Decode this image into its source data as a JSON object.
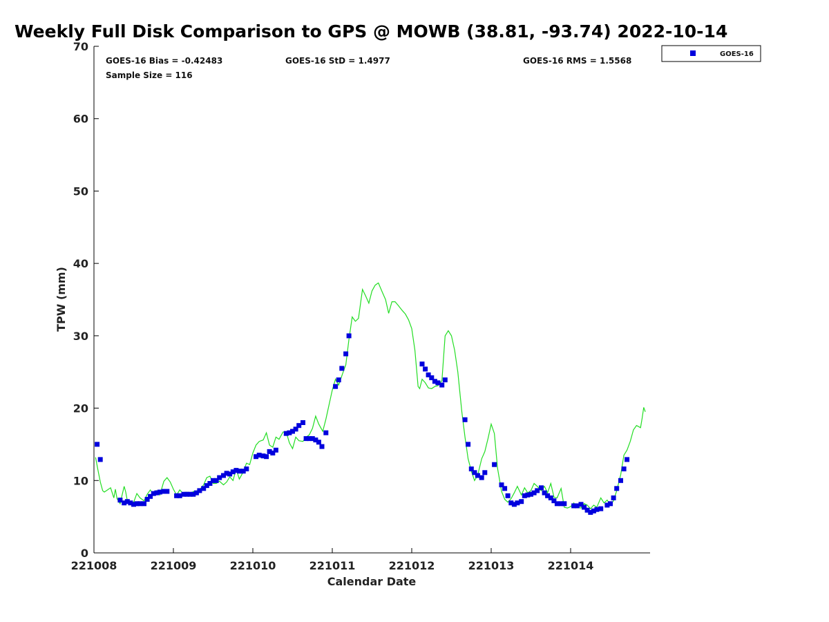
{
  "chart_data": {
    "type": "scatter",
    "title": "Weekly Full Disk Comparison to GPS @ MOWB (38.81, -93.74) 2022-10-14",
    "xlabel": "Calendar Date",
    "ylabel": "TPW (mm)",
    "xlim": [
      221008,
      221015
    ],
    "ylim": [
      0,
      70
    ],
    "x_ticks": [
      "221008",
      "221009",
      "221010",
      "221011",
      "221012",
      "221013",
      "221014"
    ],
    "y_ticks": [
      "0",
      "10",
      "20",
      "30",
      "40",
      "50",
      "60",
      "70"
    ],
    "grid": false,
    "legend_position": "top-right, outside plot",
    "stats": {
      "bias": "GOES-16 Bias = -0.42483",
      "std": "GOES-16 StD = 1.4977",
      "rms": "GOES-16 RMS = 1.5568",
      "sample": "Sample Size = 116"
    },
    "colors": {
      "goes16": "#0000dd",
      "gps_line": "#22dd22"
    },
    "series": [
      {
        "name": "GOES-16",
        "marker": "square",
        "color": "#0000dd",
        "points": [
          [
            221008.04,
            15.0
          ],
          [
            221008.08,
            12.9
          ],
          [
            221008.33,
            7.3
          ],
          [
            221008.38,
            6.9
          ],
          [
            221008.42,
            7.1
          ],
          [
            221008.46,
            6.9
          ],
          [
            221008.5,
            6.7
          ],
          [
            221008.54,
            6.8
          ],
          [
            221008.58,
            6.8
          ],
          [
            221008.63,
            6.8
          ],
          [
            221008.67,
            7.4
          ],
          [
            221008.71,
            7.8
          ],
          [
            221008.75,
            8.2
          ],
          [
            221008.79,
            8.3
          ],
          [
            221008.83,
            8.4
          ],
          [
            221008.88,
            8.5
          ],
          [
            221008.92,
            8.5
          ],
          [
            221009.04,
            7.9
          ],
          [
            221009.08,
            7.9
          ],
          [
            221009.13,
            8.1
          ],
          [
            221009.17,
            8.1
          ],
          [
            221009.21,
            8.1
          ],
          [
            221009.25,
            8.1
          ],
          [
            221009.29,
            8.3
          ],
          [
            221009.33,
            8.6
          ],
          [
            221009.38,
            8.9
          ],
          [
            221009.42,
            9.3
          ],
          [
            221009.46,
            9.6
          ],
          [
            221009.5,
            10.0
          ],
          [
            221009.54,
            10.0
          ],
          [
            221009.58,
            10.4
          ],
          [
            221009.63,
            10.7
          ],
          [
            221009.67,
            11.0
          ],
          [
            221009.71,
            10.9
          ],
          [
            221009.75,
            11.2
          ],
          [
            221009.79,
            11.4
          ],
          [
            221009.83,
            11.3
          ],
          [
            221009.88,
            11.3
          ],
          [
            221009.92,
            11.6
          ],
          [
            221010.04,
            13.3
          ],
          [
            221010.08,
            13.5
          ],
          [
            221010.13,
            13.4
          ],
          [
            221010.17,
            13.3
          ],
          [
            221010.21,
            14.0
          ],
          [
            221010.25,
            13.8
          ],
          [
            221010.29,
            14.2
          ],
          [
            221010.42,
            16.5
          ],
          [
            221010.46,
            16.6
          ],
          [
            221010.5,
            16.8
          ],
          [
            221010.54,
            17.1
          ],
          [
            221010.58,
            17.6
          ],
          [
            221010.63,
            18.0
          ],
          [
            221010.67,
            15.8
          ],
          [
            221010.71,
            15.8
          ],
          [
            221010.75,
            15.8
          ],
          [
            221010.79,
            15.6
          ],
          [
            221010.83,
            15.3
          ],
          [
            221010.87,
            14.7
          ],
          [
            221010.92,
            16.6
          ],
          [
            221011.04,
            23.0
          ],
          [
            221011.08,
            23.9
          ],
          [
            221011.12,
            25.5
          ],
          [
            221011.17,
            27.5
          ],
          [
            221011.21,
            30.0
          ],
          [
            221012.13,
            26.1
          ],
          [
            221012.17,
            25.4
          ],
          [
            221012.21,
            24.6
          ],
          [
            221012.25,
            24.2
          ],
          [
            221012.29,
            23.7
          ],
          [
            221012.33,
            23.5
          ],
          [
            221012.38,
            23.2
          ],
          [
            221012.42,
            23.9
          ],
          [
            221012.67,
            18.4
          ],
          [
            221012.71,
            15.0
          ],
          [
            221012.75,
            11.6
          ],
          [
            221012.79,
            11.1
          ],
          [
            221012.83,
            10.7
          ],
          [
            221012.88,
            10.4
          ],
          [
            221012.92,
            11.1
          ],
          [
            221013.04,
            12.2
          ],
          [
            221013.13,
            9.4
          ],
          [
            221013.17,
            8.9
          ],
          [
            221013.21,
            7.9
          ],
          [
            221013.25,
            6.9
          ],
          [
            221013.29,
            6.7
          ],
          [
            221013.33,
            6.9
          ],
          [
            221013.38,
            7.1
          ],
          [
            221013.42,
            7.9
          ],
          [
            221013.46,
            8.0
          ],
          [
            221013.5,
            8.1
          ],
          [
            221013.54,
            8.3
          ],
          [
            221013.58,
            8.6
          ],
          [
            221013.63,
            9.0
          ],
          [
            221013.67,
            8.3
          ],
          [
            221013.71,
            7.9
          ],
          [
            221013.75,
            7.6
          ],
          [
            221013.79,
            7.2
          ],
          [
            221013.83,
            6.8
          ],
          [
            221013.88,
            6.8
          ],
          [
            221013.92,
            6.8
          ],
          [
            221014.04,
            6.5
          ],
          [
            221014.08,
            6.5
          ],
          [
            221014.13,
            6.7
          ],
          [
            221014.17,
            6.3
          ],
          [
            221014.21,
            5.9
          ],
          [
            221014.25,
            5.6
          ],
          [
            221014.29,
            5.8
          ],
          [
            221014.33,
            6.0
          ],
          [
            221014.38,
            6.1
          ],
          [
            221014.46,
            6.6
          ],
          [
            221014.5,
            6.8
          ],
          [
            221014.54,
            7.6
          ],
          [
            221014.58,
            8.9
          ],
          [
            221014.63,
            10.0
          ],
          [
            221014.67,
            11.6
          ],
          [
            221014.71,
            12.9
          ]
        ]
      },
      {
        "name": "GPS",
        "type": "line",
        "color": "#22dd22",
        "points": [
          [
            221008.02,
            13.2
          ],
          [
            221008.05,
            11.5
          ],
          [
            221008.08,
            9.8
          ],
          [
            221008.11,
            8.6
          ],
          [
            221008.13,
            8.4
          ],
          [
            221008.17,
            8.7
          ],
          [
            221008.21,
            9.0
          ],
          [
            221008.25,
            7.6
          ],
          [
            221008.27,
            8.8
          ],
          [
            221008.29,
            7.5
          ],
          [
            221008.33,
            6.8
          ],
          [
            221008.35,
            7.8
          ],
          [
            221008.38,
            9.2
          ],
          [
            221008.4,
            8.4
          ],
          [
            221008.42,
            7.2
          ],
          [
            221008.46,
            6.8
          ],
          [
            221008.5,
            7.0
          ],
          [
            221008.54,
            8.2
          ],
          [
            221008.58,
            7.6
          ],
          [
            221008.63,
            7.2
          ],
          [
            221008.67,
            8.1
          ],
          [
            221008.71,
            8.7
          ],
          [
            221008.75,
            8.0
          ],
          [
            221008.79,
            8.6
          ],
          [
            221008.83,
            8.0
          ],
          [
            221008.88,
            9.9
          ],
          [
            221008.92,
            10.4
          ],
          [
            221008.96,
            9.8
          ],
          [
            221009.0,
            8.8
          ],
          [
            221009.04,
            8.0
          ],
          [
            221009.08,
            8.7
          ],
          [
            221009.13,
            8.1
          ],
          [
            221009.17,
            8.4
          ],
          [
            221009.21,
            7.9
          ],
          [
            221009.25,
            8.5
          ],
          [
            221009.29,
            8.3
          ],
          [
            221009.33,
            8.7
          ],
          [
            221009.38,
            9.4
          ],
          [
            221009.42,
            10.4
          ],
          [
            221009.46,
            10.6
          ],
          [
            221009.5,
            9.6
          ],
          [
            221009.54,
            9.6
          ],
          [
            221009.58,
            9.9
          ],
          [
            221009.63,
            9.4
          ],
          [
            221009.67,
            9.8
          ],
          [
            221009.71,
            10.5
          ],
          [
            221009.75,
            10.0
          ],
          [
            221009.79,
            11.6
          ],
          [
            221009.83,
            10.2
          ],
          [
            221009.88,
            11.2
          ],
          [
            221009.92,
            12.4
          ],
          [
            221009.96,
            12.2
          ],
          [
            221010.0,
            13.8
          ],
          [
            221010.04,
            14.9
          ],
          [
            221010.08,
            15.4
          ],
          [
            221010.13,
            15.6
          ],
          [
            221010.17,
            16.6
          ],
          [
            221010.21,
            14.9
          ],
          [
            221010.25,
            14.6
          ],
          [
            221010.29,
            16.0
          ],
          [
            221010.33,
            15.7
          ],
          [
            221010.38,
            16.7
          ],
          [
            221010.42,
            16.7
          ],
          [
            221010.46,
            15.2
          ],
          [
            221010.5,
            14.4
          ],
          [
            221010.54,
            16.0
          ],
          [
            221010.58,
            15.5
          ],
          [
            221010.63,
            15.4
          ],
          [
            221010.67,
            16.0
          ],
          [
            221010.71,
            16.3
          ],
          [
            221010.75,
            17.2
          ],
          [
            221010.79,
            18.9
          ],
          [
            221010.83,
            17.8
          ],
          [
            221010.88,
            16.8
          ],
          [
            221010.92,
            18.5
          ],
          [
            221010.96,
            20.5
          ],
          [
            221011.0,
            22.5
          ],
          [
            221011.04,
            24.0
          ],
          [
            221011.08,
            23.2
          ],
          [
            221011.13,
            24.8
          ],
          [
            221011.17,
            26.0
          ],
          [
            221011.21,
            29.5
          ],
          [
            221011.25,
            32.6
          ],
          [
            221011.29,
            32.0
          ],
          [
            221011.33,
            32.4
          ],
          [
            221011.38,
            36.4
          ],
          [
            221011.42,
            35.5
          ],
          [
            221011.46,
            34.5
          ],
          [
            221011.5,
            36.2
          ],
          [
            221011.54,
            37.0
          ],
          [
            221011.58,
            37.3
          ],
          [
            221011.63,
            36.0
          ],
          [
            221011.67,
            35.0
          ],
          [
            221011.71,
            33.1
          ],
          [
            221011.75,
            34.7
          ],
          [
            221011.79,
            34.7
          ],
          [
            221011.83,
            34.2
          ],
          [
            221011.88,
            33.5
          ],
          [
            221011.92,
            33.0
          ],
          [
            221011.96,
            32.2
          ],
          [
            221012.0,
            31.0
          ],
          [
            221012.04,
            28.0
          ],
          [
            221012.08,
            23.0
          ],
          [
            221012.1,
            22.7
          ],
          [
            221012.13,
            24.0
          ],
          [
            221012.17,
            23.5
          ],
          [
            221012.21,
            22.8
          ],
          [
            221012.25,
            22.7
          ],
          [
            221012.29,
            23.0
          ],
          [
            221012.33,
            23.1
          ],
          [
            221012.38,
            23.8
          ],
          [
            221012.42,
            30.0
          ],
          [
            221012.46,
            30.7
          ],
          [
            221012.5,
            30.0
          ],
          [
            221012.54,
            28.0
          ],
          [
            221012.58,
            25.0
          ],
          [
            221012.63,
            19.5
          ],
          [
            221012.67,
            16.0
          ],
          [
            221012.71,
            13.0
          ],
          [
            221012.75,
            11.3
          ],
          [
            221012.79,
            10.0
          ],
          [
            221012.83,
            10.7
          ],
          [
            221012.88,
            13.0
          ],
          [
            221012.92,
            14.0
          ],
          [
            221012.96,
            15.8
          ],
          [
            221013.0,
            17.8
          ],
          [
            221013.04,
            16.5
          ],
          [
            221013.08,
            11.7
          ],
          [
            221013.13,
            8.5
          ],
          [
            221013.17,
            7.4
          ],
          [
            221013.21,
            7.0
          ],
          [
            221013.25,
            7.5
          ],
          [
            221013.29,
            8.3
          ],
          [
            221013.33,
            9.2
          ],
          [
            221013.38,
            8.0
          ],
          [
            221013.42,
            9.0
          ],
          [
            221013.46,
            8.3
          ],
          [
            221013.5,
            8.6
          ],
          [
            221013.54,
            9.6
          ],
          [
            221013.58,
            9.2
          ],
          [
            221013.63,
            8.6
          ],
          [
            221013.67,
            9.2
          ],
          [
            221013.71,
            8.3
          ],
          [
            221013.75,
            9.6
          ],
          [
            221013.79,
            7.7
          ],
          [
            221013.83,
            7.6
          ],
          [
            221013.88,
            8.9
          ],
          [
            221013.92,
            6.3
          ],
          [
            221013.96,
            6.2
          ],
          [
            221014.0,
            6.4
          ],
          [
            221014.04,
            6.9
          ],
          [
            221014.08,
            6.3
          ],
          [
            221014.13,
            6.2
          ],
          [
            221014.17,
            6.8
          ],
          [
            221014.21,
            6.6
          ],
          [
            221014.25,
            6.1
          ],
          [
            221014.29,
            6.6
          ],
          [
            221014.33,
            6.3
          ],
          [
            221014.38,
            7.6
          ],
          [
            221014.42,
            6.9
          ],
          [
            221014.46,
            7.3
          ],
          [
            221014.5,
            6.6
          ],
          [
            221014.54,
            7.2
          ],
          [
            221014.58,
            8.6
          ],
          [
            221014.63,
            10.8
          ],
          [
            221014.67,
            13.5
          ],
          [
            221014.71,
            14.2
          ],
          [
            221014.75,
            15.4
          ],
          [
            221014.79,
            17.0
          ],
          [
            221014.83,
            17.6
          ],
          [
            221014.88,
            17.3
          ],
          [
            221014.9,
            18.6
          ],
          [
            221014.92,
            20.1
          ],
          [
            221014.94,
            19.5
          ]
        ]
      }
    ]
  }
}
